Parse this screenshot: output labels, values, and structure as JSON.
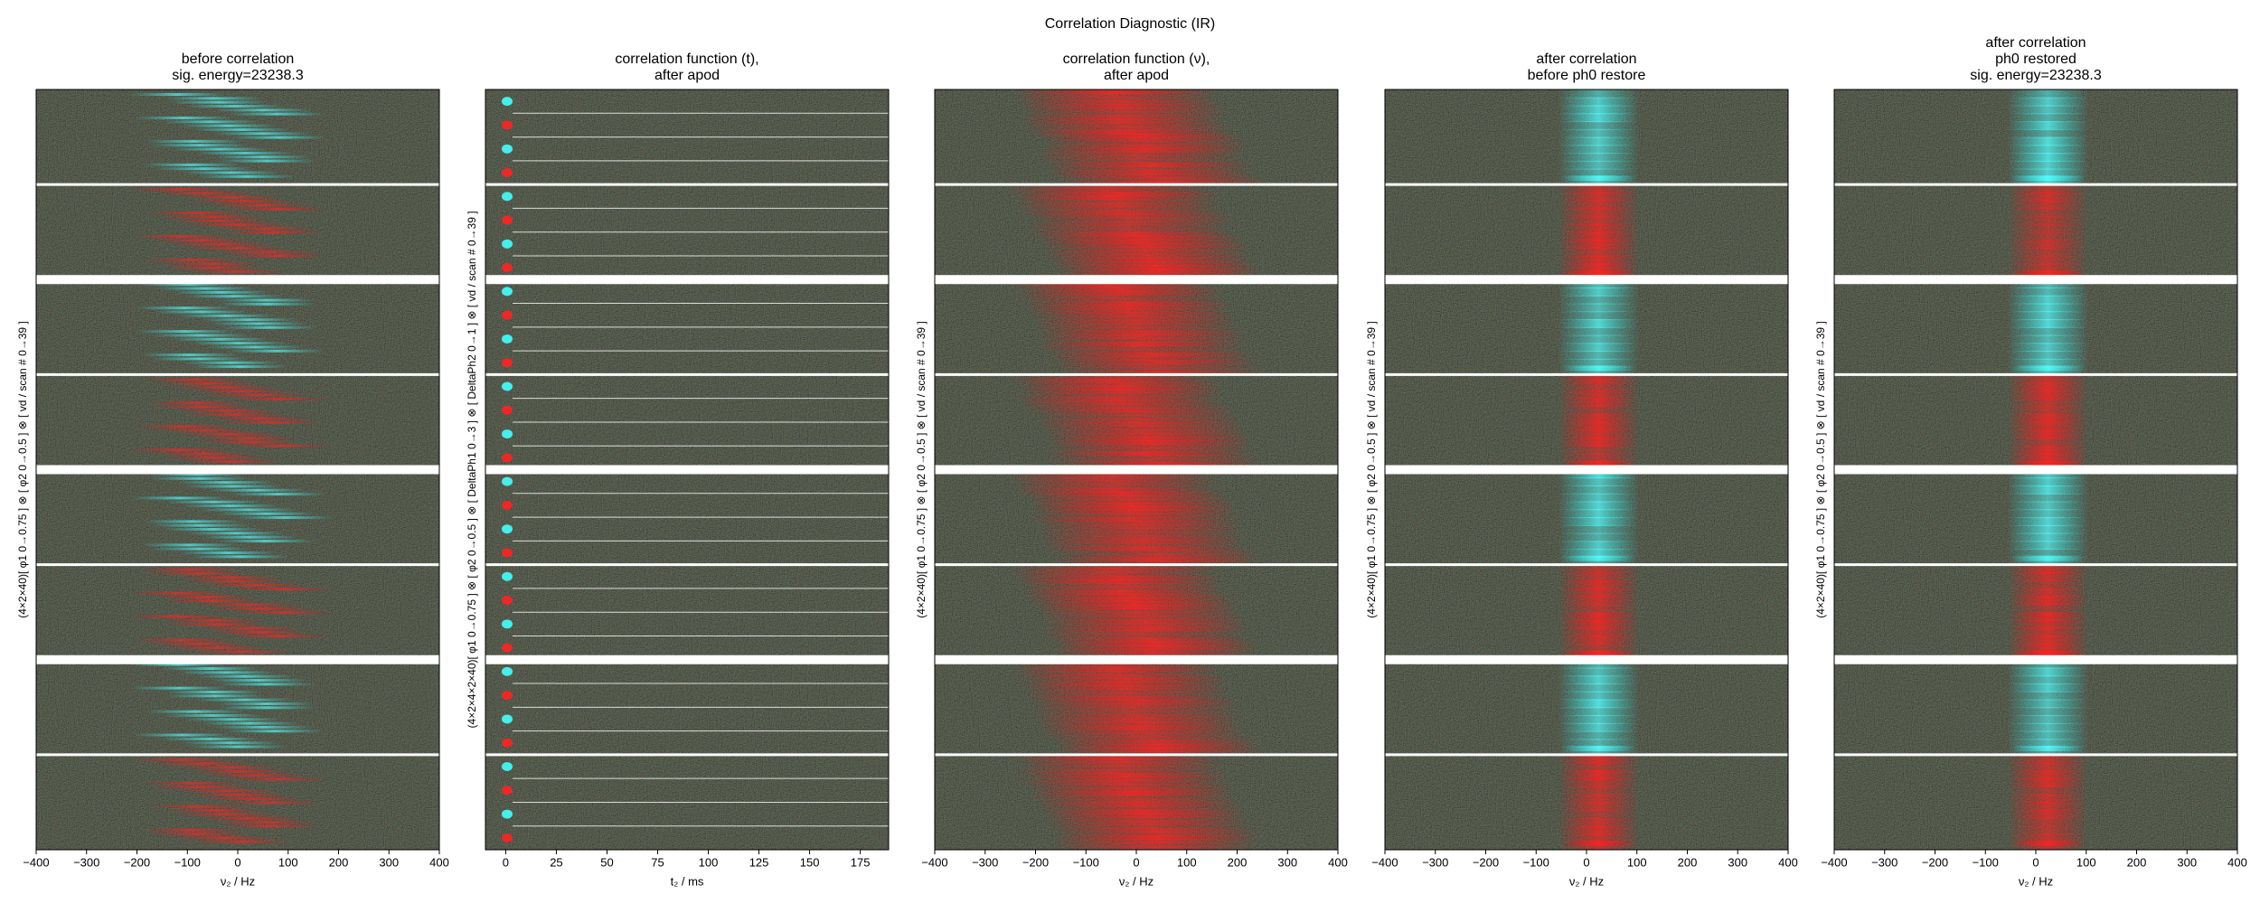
{
  "suptitle": "Correlation Diagnostic (IR)",
  "chart_data": [
    {
      "type": "image",
      "title": "before correlation\nsig. energy=23238.3",
      "xlabel": "ν₂ / Hz",
      "ylabel": "(4×2×40)[ φ1 0→0.75 ] ⊗ [ φ2 0→0.5 ] ⊗ [ vd / scan # 0→39 ]",
      "xlim": [
        -400,
        400
      ],
      "xticks": [
        {
          "value": -400,
          "label": "−400"
        },
        {
          "value": -300,
          "label": "−300"
        },
        {
          "value": -200,
          "label": "−200"
        },
        {
          "value": -100,
          "label": "−100"
        },
        0,
        100,
        200,
        300,
        400
      ]
    },
    {
      "type": "image",
      "title": "correlation function (t),\nafter apod",
      "xlabel": "t₂ / ms",
      "ylabel": "(4×2×4×2×40)[ φ1 0→0.75 ] ⊗ [ φ2 0→0.5 ] ⊗ [ DeltaPh1 0→3 ] ⊗ [ DeltaPh2 0→1 ] ⊗ [ vd / scan # 0→39 ]",
      "xlim": [
        -10,
        189
      ],
      "xticks": [
        0,
        25,
        50,
        75,
        100,
        125,
        150,
        175
      ]
    },
    {
      "type": "image",
      "title": "correlation function (ν),\nafter apod",
      "xlabel": "ν₂ / Hz",
      "ylabel": "(4×2×40)[ φ1 0→0.75 ] ⊗ [ φ2 0→0.5 ] ⊗ [ vd / scan # 0→39 ]",
      "xlim": [
        -400,
        400
      ],
      "xticks": [
        {
          "value": -400,
          "label": "−400"
        },
        {
          "value": -300,
          "label": "−300"
        },
        {
          "value": -200,
          "label": "−200"
        },
        {
          "value": -100,
          "label": "−100"
        },
        0,
        100,
        200,
        300,
        400
      ]
    },
    {
      "type": "image",
      "title": "after correlation\nbefore ph0 restore",
      "xlabel": "ν₂ / Hz",
      "ylabel": "(4×2×40)[ φ1 0→0.75 ] ⊗ [ φ2 0→0.5 ] ⊗ [ vd / scan # 0→39 ]",
      "xlim": [
        -400,
        400
      ],
      "xticks": [
        {
          "value": -400,
          "label": "−400"
        },
        {
          "value": -300,
          "label": "−300"
        },
        {
          "value": -200,
          "label": "−200"
        },
        {
          "value": -100,
          "label": "−100"
        },
        0,
        100,
        200,
        300,
        400
      ]
    },
    {
      "type": "image",
      "title": "after correlation\nph0 restored\nsig. energy=23238.3",
      "xlabel": "ν₂ / Hz",
      "ylabel": "(4×2×40)[ φ1 0→0.75 ] ⊗ [ φ2 0→0.5 ] ⊗ [ vd / scan # 0→39 ]",
      "xlim": [
        -400,
        400
      ],
      "xticks": [
        {
          "value": -400,
          "label": "−400"
        },
        {
          "value": -300,
          "label": "−300"
        },
        {
          "value": -200,
          "label": "−200"
        },
        {
          "value": -100,
          "label": "−100"
        },
        0,
        100,
        200,
        300,
        400
      ]
    }
  ]
}
